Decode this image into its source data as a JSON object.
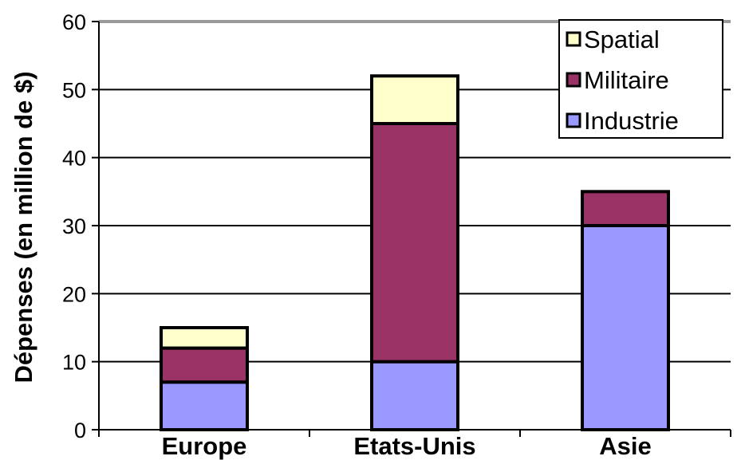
{
  "chart_data": {
    "type": "bar",
    "stacked": true,
    "title": "",
    "xlabel": "",
    "ylabel": "Dépenses (en million de $)",
    "ylim": [
      0,
      60
    ],
    "yticks": [
      0,
      10,
      20,
      30,
      40,
      50,
      60
    ],
    "grid": true,
    "legend_position": "top-right",
    "categories": [
      "Europe",
      "Etats-Unis",
      "Asie"
    ],
    "series": [
      {
        "name": "Industrie",
        "color": "#9999ff",
        "values": [
          7,
          10,
          30
        ]
      },
      {
        "name": "Militaire",
        "color": "#993366",
        "values": [
          5,
          35,
          5
        ]
      },
      {
        "name": "Spatial",
        "color": "#ffffcc",
        "values": [
          3,
          7,
          0
        ]
      }
    ],
    "legend_order": [
      "Spatial",
      "Militaire",
      "Industrie"
    ]
  }
}
